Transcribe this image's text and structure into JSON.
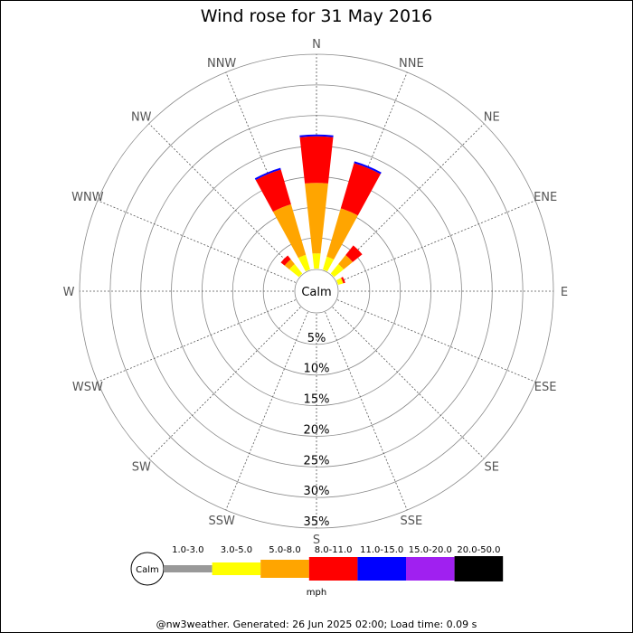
{
  "chart_data": {
    "type": "windrose",
    "title": "Wind rose for 31 May 2016",
    "directions": [
      "N",
      "NNE",
      "NE",
      "ENE",
      "E",
      "ESE",
      "SE",
      "SSE",
      "S",
      "SSW",
      "SW",
      "WSW",
      "W",
      "WNW",
      "NW",
      "NNW"
    ],
    "radial_ticks": [
      "5%",
      "10%",
      "15%",
      "20%",
      "25%",
      "30%",
      "35%"
    ],
    "radial_values": [
      5,
      10,
      15,
      20,
      25,
      30,
      35
    ],
    "rmax": 35,
    "calm_label": "Calm",
    "speed_unit": "mph",
    "speed_bins": [
      {
        "label": "1.0-3.0",
        "color": "#999999"
      },
      {
        "label": "3.0-5.0",
        "color": "#ffff00"
      },
      {
        "label": "5.0-8.0",
        "color": "#ffa500"
      },
      {
        "label": "8.0-11.0",
        "color": "#ff0000"
      },
      {
        "label": "11.0-15.0",
        "color": "#0000ff"
      },
      {
        "label": "15.0-20.0",
        "color": "#a020f0"
      },
      {
        "label": "20.0-50.0",
        "color": "#000000"
      }
    ],
    "series": [
      {
        "direction": "N",
        "cumulative": [
          0,
          2.5,
          14.0,
          21.6,
          21.9,
          21.9,
          21.9
        ]
      },
      {
        "direction": "NNE",
        "cumulative": [
          0,
          2.2,
          10.4,
          18.1,
          18.4,
          18.4,
          18.4
        ]
      },
      {
        "direction": "NE",
        "cumulative": [
          0,
          2.0,
          3.9,
          5.9,
          5.9,
          5.9,
          5.9
        ]
      },
      {
        "direction": "ENE",
        "cumulative": [
          0,
          0.8,
          0.9,
          1.2,
          1.2,
          1.2,
          1.2
        ]
      },
      {
        "direction": "E",
        "cumulative": [
          0,
          0,
          0,
          0,
          0,
          0,
          0
        ]
      },
      {
        "direction": "ESE",
        "cumulative": [
          0,
          0,
          0,
          0,
          0,
          0,
          0
        ]
      },
      {
        "direction": "SE",
        "cumulative": [
          0,
          0,
          0,
          0,
          0,
          0,
          0
        ]
      },
      {
        "direction": "SSE",
        "cumulative": [
          0,
          0,
          0,
          0,
          0,
          0,
          0
        ]
      },
      {
        "direction": "S",
        "cumulative": [
          0,
          0,
          0,
          0,
          0,
          0,
          0
        ]
      },
      {
        "direction": "SSW",
        "cumulative": [
          0,
          0,
          0,
          0,
          0,
          0,
          0
        ]
      },
      {
        "direction": "SW",
        "cumulative": [
          0,
          0,
          0,
          0,
          0,
          0,
          0
        ]
      },
      {
        "direction": "WSW",
        "cumulative": [
          0,
          0,
          0,
          0,
          0,
          0,
          0
        ]
      },
      {
        "direction": "W",
        "cumulative": [
          0,
          0,
          0,
          0,
          0,
          0,
          0
        ]
      },
      {
        "direction": "WNW",
        "cumulative": [
          0,
          0,
          0,
          0,
          0,
          0,
          0
        ]
      },
      {
        "direction": "NW",
        "cumulative": [
          0,
          2.0,
          3.0,
          3.8,
          3.8,
          3.8,
          3.8
        ]
      },
      {
        "direction": "NNW",
        "cumulative": [
          0,
          2.5,
          11.1,
          17.0,
          17.3,
          17.3,
          17.3
        ]
      }
    ]
  },
  "footer": "@nw3weather. Generated: 26 Jun 2025 02:00; Load time: 0.09 s"
}
